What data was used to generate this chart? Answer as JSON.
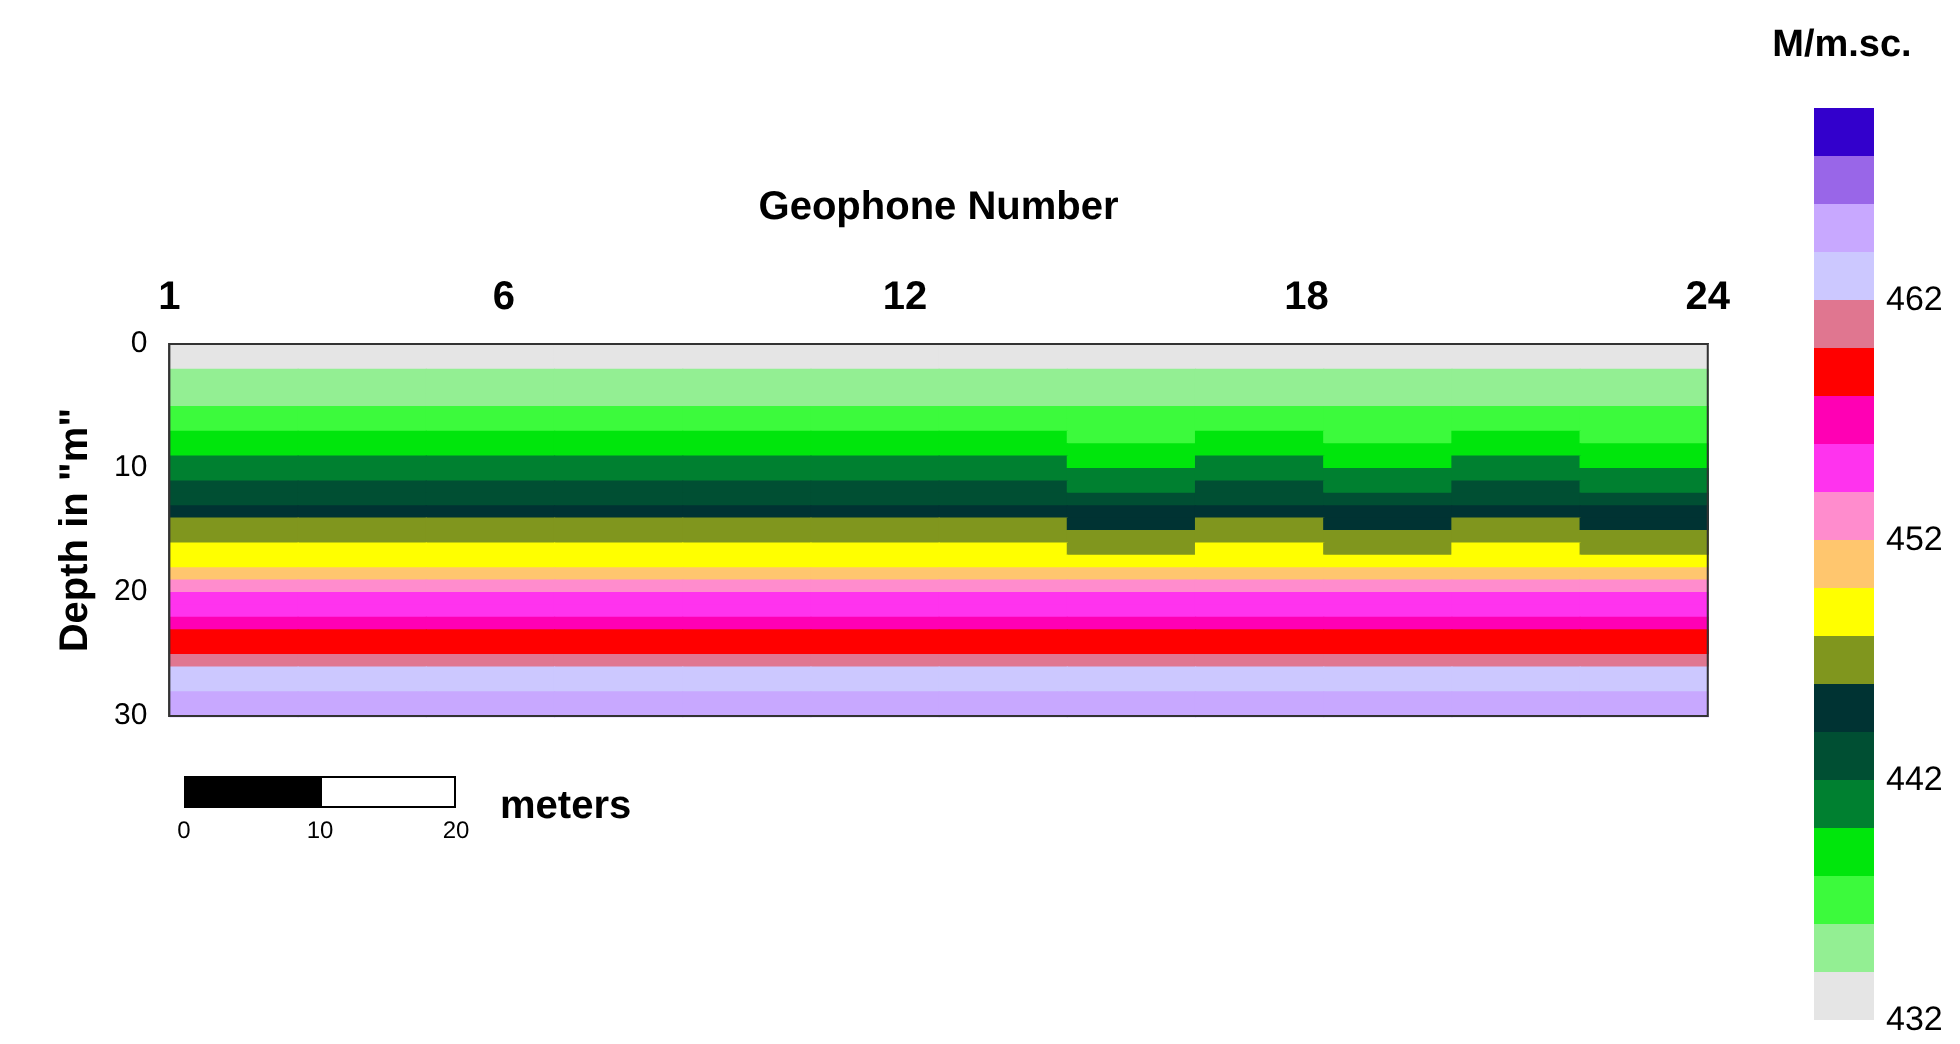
{
  "chart_data": {
    "type": "heatmap",
    "xlabel": "Geophone Number",
    "ylabel": "Depth in \"m\"",
    "clabel": "M/m.sc.",
    "xlim": [
      1,
      24
    ],
    "xticks": [
      1,
      6,
      12,
      18,
      24
    ],
    "ylim": [
      30,
      0
    ],
    "yticks": [
      0,
      10,
      20,
      30
    ],
    "clim": [
      432,
      470
    ],
    "cticks": [
      432,
      442,
      452,
      462
    ],
    "colors": [
      "#e5e5e5",
      "#93ef93",
      "#3cfa3c",
      "#00e60c",
      "#008030",
      "#004f33",
      "#003333",
      "#80961e",
      "#ffff00",
      "#ffc66e",
      "#ff8ccd",
      "#ff33ee",
      "#ff00b4",
      "#ff0000",
      "#e07690",
      "#ccc8ff",
      "#c8a8ff",
      "#9966e8",
      "#3300cc"
    ],
    "annotations": [
      "0",
      "10",
      "20",
      "meters"
    ],
    "cells": [
      [
        432.6,
        432.6,
        432.6,
        432.6,
        432.6,
        432.6,
        432.6,
        432.6,
        432.6,
        432.6,
        432.6,
        432.6
      ],
      [
        433.8,
        433.8,
        433.8,
        433.8,
        433.8,
        433.8,
        433.8,
        433.8,
        433.8,
        433.8,
        433.8,
        433.8
      ],
      [
        434.5,
        434.5,
        434.5,
        434.5,
        434.5,
        434.5,
        434.5,
        434.5,
        434.5,
        434.5,
        434.5,
        434.5
      ],
      [
        435.2,
        435.2,
        435.2,
        435.2,
        435.2,
        435.2,
        435.2,
        435.2,
        435.2,
        435.2,
        435.2,
        435.2
      ],
      [
        435.9,
        435.9,
        435.9,
        435.9,
        435.9,
        435.9,
        435.9,
        435.9,
        435.9,
        435.9,
        435.9,
        435.9
      ],
      [
        436.6,
        436.6,
        436.6,
        436.6,
        436.6,
        436.6,
        436.6,
        436.6,
        436.6,
        436.6,
        436.6,
        436.6
      ],
      [
        437.4,
        437.4,
        437.4,
        437.4,
        437.4,
        437.4,
        437.4,
        437.4,
        437.4,
        437.4,
        437.4,
        437.4
      ],
      [
        438.3,
        438.3,
        438.3,
        438.3,
        438.3,
        438.3,
        438.3,
        437.8,
        438.3,
        437.8,
        438.3,
        437.8
      ],
      [
        439.3,
        439.3,
        439.3,
        439.3,
        439.3,
        439.3,
        439.3,
        438.6,
        439.3,
        438.6,
        439.3,
        438.6
      ],
      [
        440.3,
        440.3,
        440.3,
        440.3,
        440.3,
        440.3,
        440.3,
        439.5,
        440.3,
        439.5,
        440.3,
        439.5
      ],
      [
        441.4,
        441.4,
        441.4,
        441.4,
        441.4,
        441.4,
        441.4,
        440.5,
        441.4,
        440.5,
        441.4,
        440.5
      ],
      [
        442.6,
        442.6,
        442.6,
        442.6,
        442.6,
        442.6,
        442.6,
        441.6,
        442.6,
        441.6,
        442.6,
        441.6
      ],
      [
        443.8,
        443.8,
        443.8,
        443.8,
        443.8,
        443.8,
        443.8,
        442.8,
        443.8,
        442.8,
        443.8,
        442.8
      ],
      [
        445.0,
        445.0,
        445.0,
        445.0,
        445.0,
        445.0,
        445.0,
        444.0,
        445.0,
        444.0,
        445.0,
        444.0
      ],
      [
        446.1,
        446.1,
        446.1,
        446.1,
        446.1,
        446.1,
        446.1,
        445.2,
        446.1,
        445.2,
        446.1,
        445.2
      ],
      [
        447.4,
        447.4,
        447.4,
        447.4,
        447.4,
        447.4,
        447.4,
        446.5,
        447.4,
        446.5,
        447.4,
        446.5
      ],
      [
        448.6,
        448.6,
        448.6,
        448.6,
        448.6,
        448.6,
        448.6,
        447.8,
        448.6,
        447.8,
        448.6,
        447.8
      ],
      [
        449.8,
        449.8,
        449.8,
        449.8,
        449.8,
        449.8,
        449.8,
        449.2,
        449.8,
        449.2,
        449.8,
        449.2
      ],
      [
        451.2,
        451.2,
        451.2,
        451.2,
        451.2,
        451.2,
        451.2,
        450.8,
        451.2,
        450.8,
        451.2,
        450.8
      ],
      [
        452.7,
        452.7,
        452.7,
        452.7,
        452.7,
        452.7,
        452.7,
        452.7,
        452.7,
        452.7,
        452.7,
        452.7
      ],
      [
        454.1,
        454.1,
        454.1,
        454.1,
        454.1,
        454.1,
        454.1,
        454.1,
        454.1,
        454.1,
        454.1,
        454.1
      ],
      [
        455.6,
        455.6,
        455.6,
        455.6,
        455.6,
        455.6,
        455.6,
        455.6,
        455.6,
        455.6,
        455.6,
        455.6
      ],
      [
        457.0,
        457.0,
        457.0,
        457.0,
        457.0,
        457.0,
        457.0,
        457.0,
        457.0,
        457.0,
        457.0,
        457.0
      ],
      [
        458.3,
        458.3,
        458.3,
        458.3,
        458.3,
        458.3,
        458.3,
        458.3,
        458.3,
        458.3,
        458.3,
        458.3
      ],
      [
        459.6,
        459.6,
        459.6,
        459.6,
        459.6,
        459.6,
        459.6,
        459.6,
        459.6,
        459.6,
        459.6,
        459.6
      ],
      [
        460.9,
        460.9,
        460.9,
        460.9,
        460.9,
        460.9,
        460.9,
        460.9,
        460.9,
        460.9,
        460.9,
        460.9
      ],
      [
        462.1,
        462.1,
        462.1,
        462.1,
        462.1,
        462.1,
        462.1,
        462.1,
        462.1,
        462.1,
        462.1,
        462.1
      ],
      [
        463.4,
        463.4,
        463.4,
        463.4,
        463.4,
        463.4,
        463.4,
        463.4,
        463.4,
        463.4,
        463.4,
        463.4
      ],
      [
        464.6,
        464.6,
        464.6,
        464.6,
        464.6,
        464.6,
        464.6,
        464.6,
        464.6,
        464.6,
        464.6,
        464.6
      ],
      [
        465.8,
        465.8,
        465.8,
        465.8,
        465.8,
        465.8,
        465.8,
        465.8,
        465.8,
        465.8,
        465.8,
        465.8
      ]
    ]
  }
}
